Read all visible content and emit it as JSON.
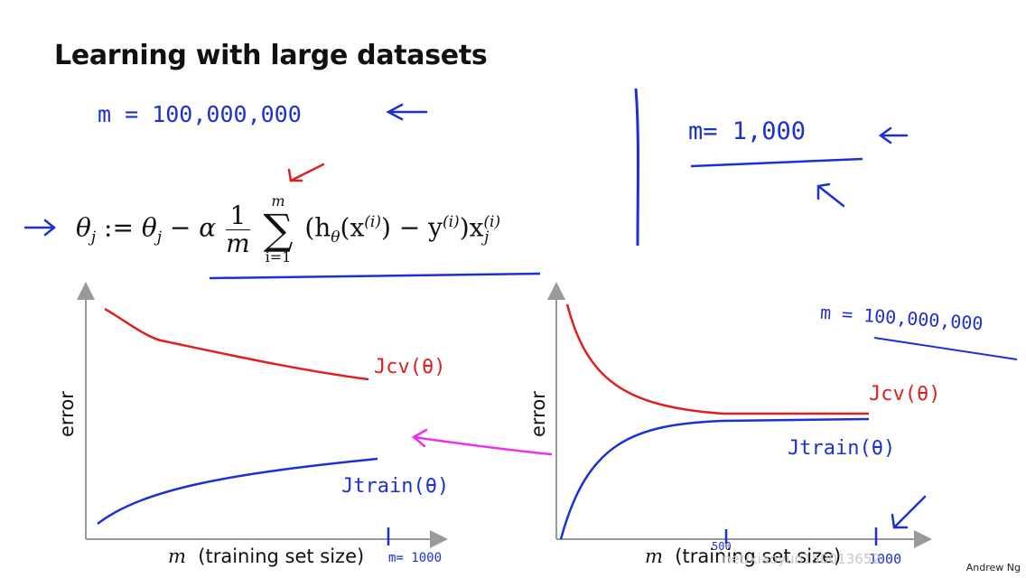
{
  "title": "Learning with large datasets",
  "annotations": {
    "m_large": "m = 100,000,000",
    "m_small": "m= 1,000",
    "right_m": "m = 100,000,000",
    "m_1000_tick": "m= 1000",
    "tick_500": "500",
    "tick_1000": "1000"
  },
  "equation": {
    "lhs": "θ",
    "lhs_sub": "j",
    "assign": ":=",
    "rhs": "θ",
    "rhs_sub": "j",
    "minus": "−",
    "alpha": "α",
    "frac_num": "1",
    "frac_den": "m",
    "sum_upper": "m",
    "sum_lower": "i=1",
    "sigma": "∑",
    "term": "(h",
    "term_theta": "θ",
    "x": "(x",
    "sup_i": "(i)",
    "close": ") − y",
    "sup_i2": "(i)",
    "x2": ")x",
    "sup_i3": "(i)",
    "sub_j": "j"
  },
  "left_chart_labels": {
    "ylabel": "error",
    "xlabel_m": "m",
    "xlabel": "(training set size)",
    "cv": "Jcv(θ)",
    "train": "Jtrain(θ)"
  },
  "right_chart_labels": {
    "ylabel": "error",
    "xlabel_m": "m",
    "xlabel": "(training set size)",
    "cv": "Jcv(θ)",
    "train": "Jtrain(θ)"
  },
  "credit": "Andrew Ng",
  "watermark": "net/xiaoyun150013652",
  "colors": {
    "blue": "#1d2fd6",
    "red": "#e02020",
    "magenta": "#ee30ee",
    "axis": "#999999"
  }
}
